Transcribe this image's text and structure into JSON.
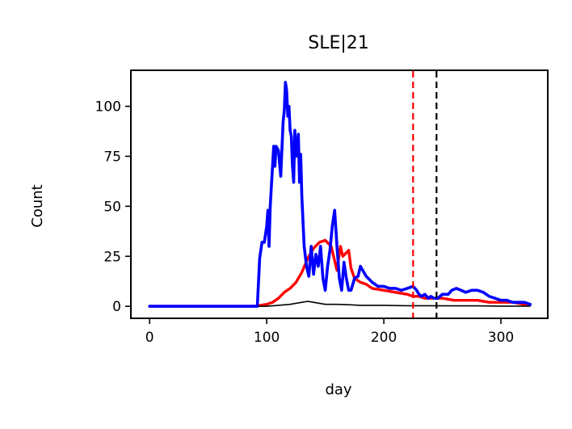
{
  "chart_data": {
    "type": "line",
    "title": "SLE|21",
    "xlabel": "day",
    "ylabel": "Count",
    "xlim": [
      -16,
      340
    ],
    "ylim": [
      -6,
      118
    ],
    "xticks": [
      0,
      100,
      200,
      300
    ],
    "yticks": [
      0,
      25,
      50,
      75,
      100
    ],
    "grid": false,
    "legend": "none",
    "series": [
      {
        "color": "#ff0000",
        "x": [
          0,
          90,
          100,
          105,
          110,
          115,
          120,
          125,
          130,
          135,
          140,
          145,
          150,
          155,
          160,
          163,
          165,
          170,
          172,
          175,
          180,
          185,
          190,
          200,
          210,
          220,
          225,
          230,
          235,
          240,
          250,
          260,
          270,
          280,
          290,
          300,
          310,
          320,
          325
        ],
        "y": [
          0,
          0,
          1,
          2,
          4,
          7,
          9,
          12,
          17,
          24,
          29,
          32,
          33,
          30,
          18,
          30,
          25,
          28,
          19,
          14,
          12,
          11,
          9,
          8,
          7,
          6,
          5,
          5,
          4,
          4,
          4,
          3,
          3,
          3,
          2,
          2,
          2,
          1,
          1
        ]
      },
      {
        "color": "#000000",
        "x": [
          0,
          90,
          100,
          110,
          120,
          130,
          135,
          140,
          145,
          150,
          160,
          170,
          180,
          200,
          220,
          240,
          260,
          280,
          300,
          325
        ],
        "y": [
          0,
          0,
          0,
          0.5,
          1,
          2,
          2.5,
          2,
          1.5,
          1,
          1,
          0.8,
          0.5,
          0.5,
          0.3,
          0.3,
          0.2,
          0.2,
          0.1,
          0.1
        ],
        "width": 1.6
      },
      {
        "color": "#0000ff",
        "x": [
          0,
          92,
          94,
          96,
          98,
          100,
          101,
          102,
          103,
          104,
          106,
          107,
          108,
          110,
          112,
          114,
          115,
          116,
          117,
          118,
          119,
          120,
          121,
          122,
          123,
          124,
          125,
          126,
          127,
          128,
          129,
          130,
          132,
          134,
          136,
          138,
          140,
          142,
          144,
          146,
          148,
          150,
          152,
          154,
          156,
          158,
          160,
          162,
          164,
          166,
          168,
          170,
          172,
          175,
          178,
          180,
          182,
          185,
          190,
          195,
          200,
          205,
          210,
          215,
          220,
          225,
          228,
          230,
          232,
          235,
          238,
          240,
          243,
          246,
          250,
          255,
          258,
          262,
          266,
          270,
          275,
          280,
          285,
          290,
          295,
          300,
          305,
          310,
          315,
          320,
          325
        ],
        "y": [
          0,
          0,
          24,
          32,
          32,
          40,
          48,
          30,
          50,
          60,
          80,
          70,
          80,
          78,
          65,
          92,
          98,
          112,
          108,
          95,
          100,
          88,
          85,
          70,
          62,
          88,
          75,
          80,
          86,
          62,
          76,
          55,
          30,
          20,
          15,
          30,
          16,
          26,
          20,
          30,
          14,
          8,
          20,
          28,
          40,
          48,
          30,
          14,
          8,
          22,
          14,
          8,
          8,
          14,
          15,
          20,
          18,
          15,
          12,
          10,
          10,
          9,
          9,
          8,
          9,
          10,
          8,
          6,
          5,
          6,
          4,
          5,
          4,
          4,
          6,
          6,
          8,
          9,
          8,
          7,
          8,
          8,
          7,
          5,
          4,
          3,
          3,
          2,
          2,
          2,
          1
        ],
        "width": 3.6
      },
      {
        "color": "#ff0000",
        "vline": 225,
        "dashed": true
      },
      {
        "color": "#000000",
        "vline": 245,
        "dashed": true
      }
    ]
  }
}
